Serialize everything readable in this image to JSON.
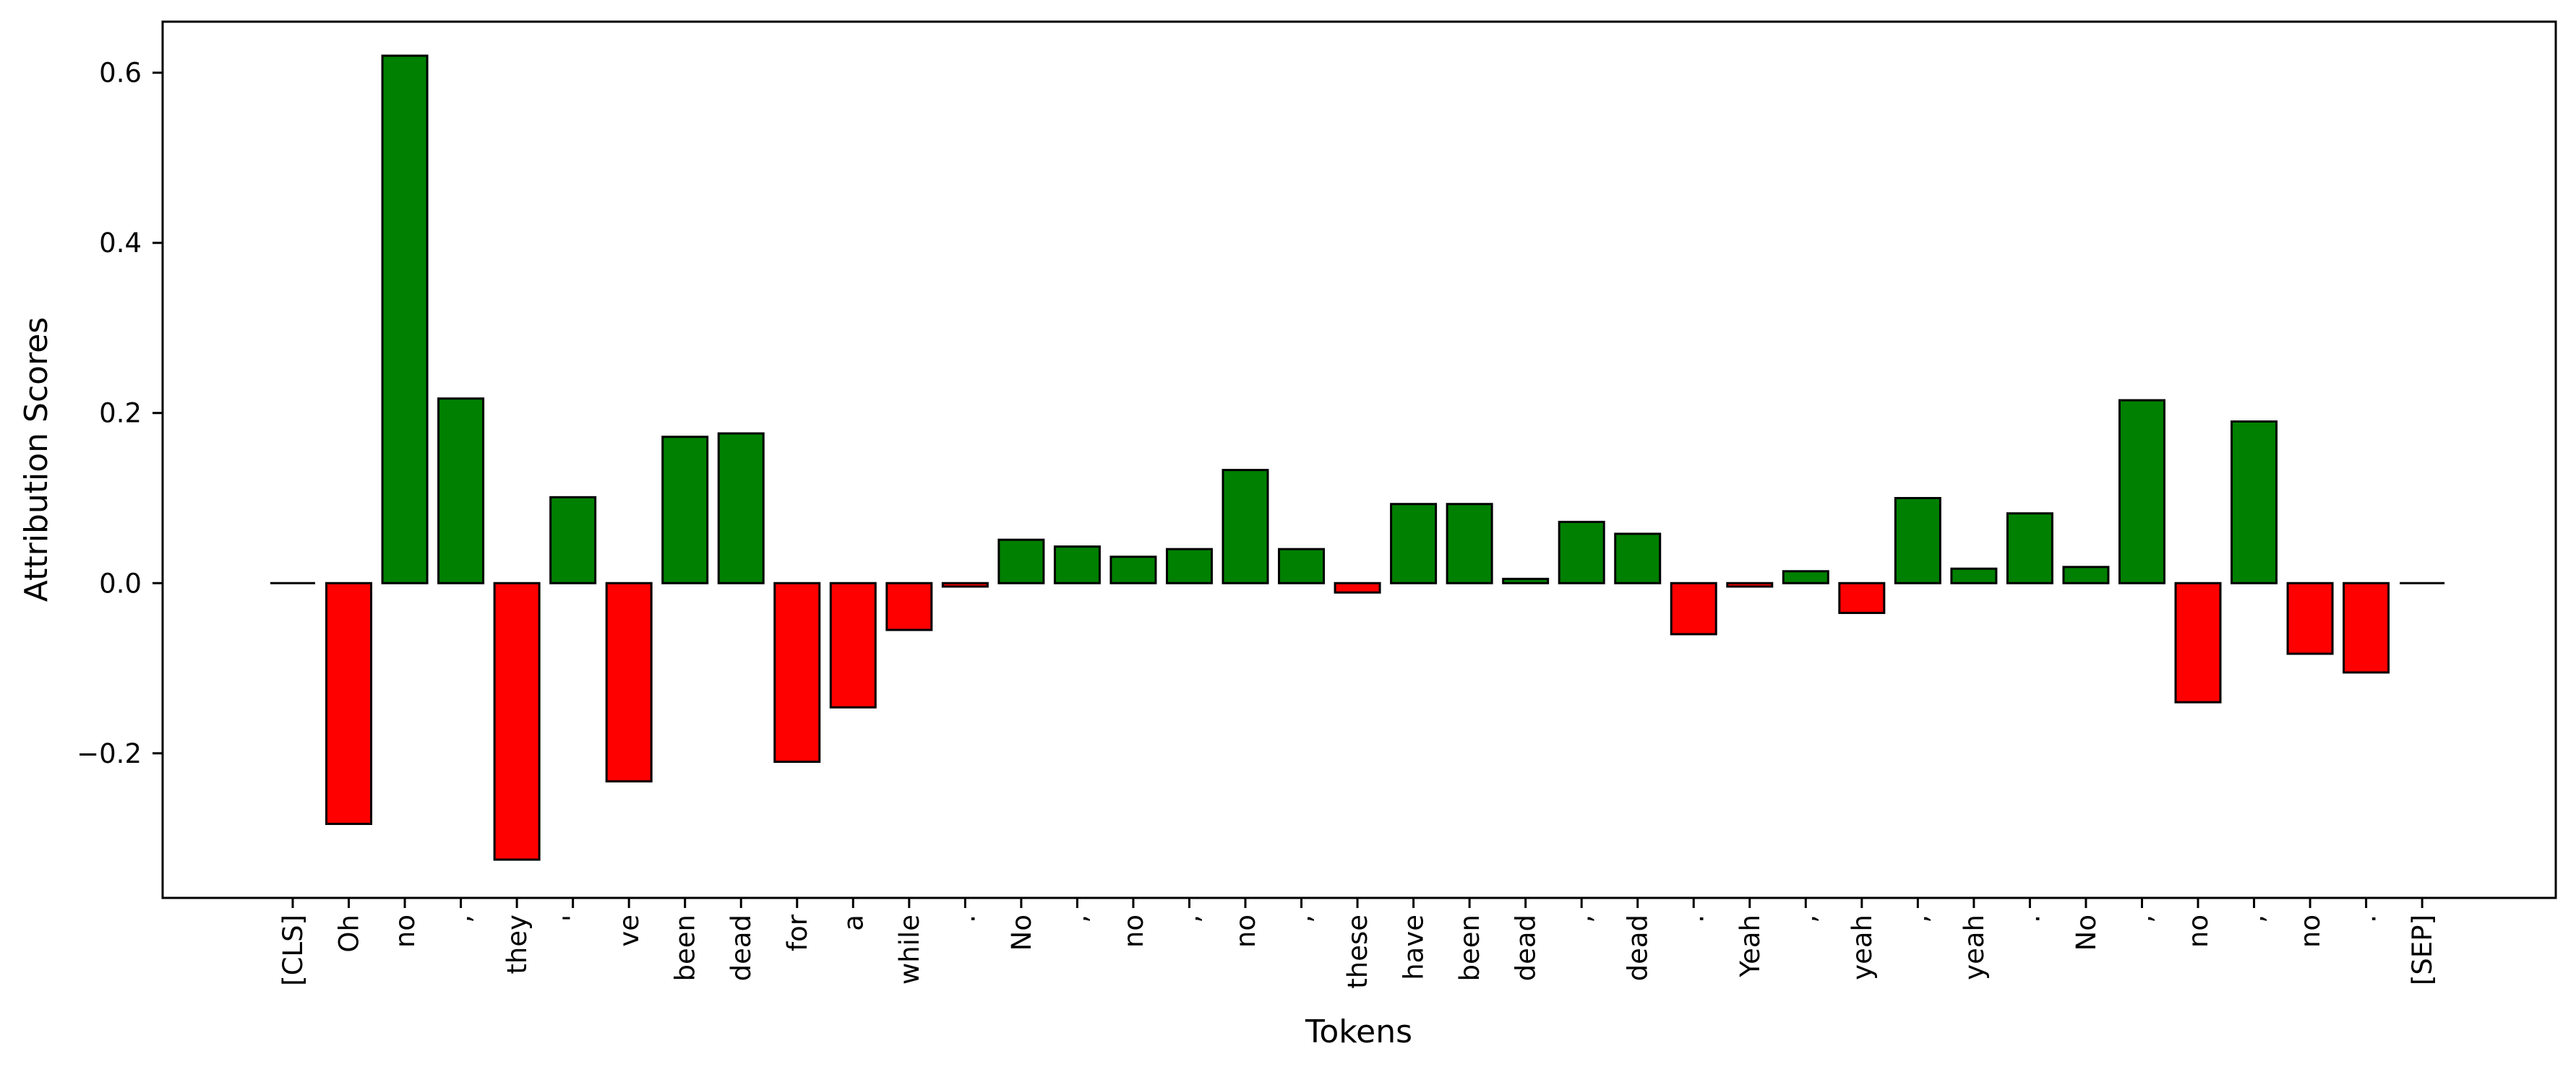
{
  "chart_data": {
    "type": "bar",
    "xlabel": "Tokens",
    "ylabel": "Attribution Scores",
    "ylim": [
      -0.37,
      0.66
    ],
    "yticks": [
      -0.2,
      0.0,
      0.2,
      0.4,
      0.6
    ],
    "ytick_labels": [
      "−0.2",
      "0.0",
      "0.2",
      "0.4",
      "0.6"
    ],
    "positive_color": "#008000",
    "negative_color": "#ff0000",
    "edge_color": "#000000",
    "grid": false,
    "categories": [
      "[CLS]",
      "Oh",
      "no",
      ",",
      "they",
      "'",
      "ve",
      "been",
      "dead",
      "for",
      "a",
      "while",
      ".",
      "No",
      ",",
      "no",
      ",",
      "no",
      ",",
      "these",
      "have",
      "been",
      "dead",
      ",",
      "dead",
      ".",
      "Yeah",
      ",",
      "yeah",
      ",",
      "yeah",
      ".",
      "No",
      ",",
      "no",
      ",",
      "no",
      ".",
      "[SEP]"
    ],
    "values": [
      0.0,
      -0.283,
      0.62,
      0.217,
      -0.325,
      0.101,
      -0.233,
      0.172,
      0.176,
      -0.21,
      -0.146,
      -0.055,
      -0.004,
      0.051,
      0.043,
      0.031,
      0.04,
      0.133,
      0.04,
      -0.011,
      0.093,
      0.093,
      0.005,
      0.072,
      0.058,
      -0.06,
      -0.004,
      0.014,
      -0.035,
      0.1,
      0.017,
      0.082,
      0.019,
      0.215,
      -0.14,
      0.19,
      -0.083,
      -0.105,
      0.0
    ]
  }
}
